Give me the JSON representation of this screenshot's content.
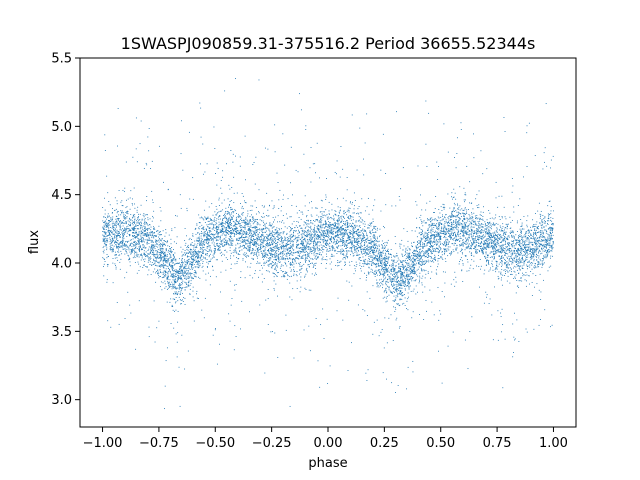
{
  "chart_data": {
    "type": "scatter",
    "title": "1SWASPJ090859.31-375516.2 Period 36655.52344s",
    "xlabel": "phase",
    "ylabel": "flux",
    "xlim": [
      -1.1,
      1.1
    ],
    "ylim": [
      2.8,
      5.5
    ],
    "xticks": [
      -1.0,
      -0.75,
      -0.5,
      -0.25,
      0.0,
      0.25,
      0.5,
      0.75,
      1.0
    ],
    "xtick_labels": [
      "−1.00",
      "−0.75",
      "−0.50",
      "−0.25",
      "0.00",
      "0.25",
      "0.50",
      "0.75",
      "1.00"
    ],
    "yticks": [
      3.0,
      3.5,
      4.0,
      4.5,
      5.0,
      5.5
    ],
    "ytick_labels": [
      "3.0",
      "3.5",
      "4.0",
      "4.5",
      "5.0",
      "5.5"
    ],
    "grid": false,
    "legend": "none",
    "marker_color": "#1f77b4",
    "phase_range": [
      -1.0,
      1.0
    ],
    "light_curve_profile": {
      "x": [
        -1.0,
        -0.9,
        -0.8,
        -0.75,
        -0.7,
        -0.67,
        -0.62,
        -0.55,
        -0.45,
        -0.35,
        -0.25,
        -0.15,
        -0.05,
        0.0,
        0.1,
        0.2,
        0.25,
        0.3,
        0.33,
        0.38,
        0.45,
        0.55,
        0.65,
        0.75,
        0.85,
        0.95,
        1.0
      ],
      "y": [
        4.2,
        4.23,
        4.18,
        4.08,
        3.95,
        3.88,
        3.98,
        4.15,
        4.25,
        4.2,
        4.12,
        4.1,
        4.18,
        4.22,
        4.2,
        4.1,
        3.98,
        3.88,
        3.9,
        4.0,
        4.16,
        4.25,
        4.22,
        4.12,
        4.08,
        4.15,
        4.2
      ]
    },
    "scatter_sd": 0.1,
    "outlier_fraction": 0.09,
    "outlier_range": [
      2.9,
      5.35
    ]
  }
}
